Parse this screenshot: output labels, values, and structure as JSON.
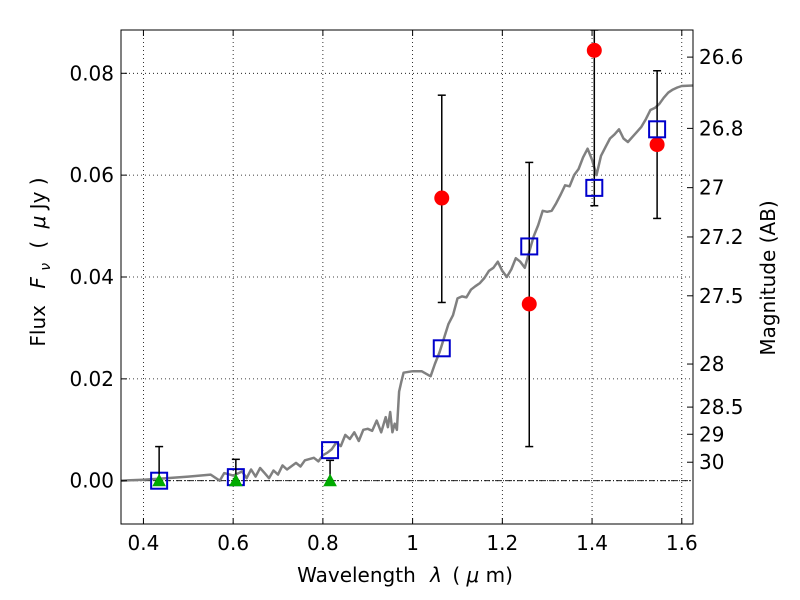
{
  "chart_data": {
    "type": "scatter",
    "xlabel_main": "Wavelength",
    "xlabel_symbol": "λ",
    "xlabel_unit_open": "(",
    "xlabel_unit_mu": "μ",
    "xlabel_unit_rest": "m)",
    "ylabel_main": "Flux",
    "ylabel_symbol": "F",
    "ylabel_symbol_sub": "ν",
    "ylabel_unit_open": "(",
    "ylabel_unit_mu": "μ",
    "ylabel_unit_rest": "Jy )",
    "y2label": "Magnitude (AB)",
    "xlim": [
      0.35,
      1.625
    ],
    "ylim": [
      -0.0085,
      0.0885
    ],
    "grid": true,
    "xticks": [
      0.4,
      0.6,
      0.8,
      1.0,
      1.2,
      1.4,
      1.6
    ],
    "xtick_labels": [
      "0.4",
      "0.6",
      "0.8",
      "1",
      "1.2",
      "1.4",
      "1.6"
    ],
    "yticks": [
      0.0,
      0.02,
      0.04,
      0.06,
      0.08
    ],
    "ytick_labels": [
      "0.00",
      "0.02",
      "0.04",
      "0.06",
      "0.08"
    ],
    "y2ticks": [
      {
        "label": "26.6",
        "mag": 26.6
      },
      {
        "label": "26.8",
        "mag": 26.8
      },
      {
        "label": "27",
        "mag": 27.0
      },
      {
        "label": "27.2",
        "mag": 27.2
      },
      {
        "label": "27.5",
        "mag": 27.5
      },
      {
        "label": "28",
        "mag": 28.0
      },
      {
        "label": "28.5",
        "mag": 28.5
      },
      {
        "label": "29",
        "mag": 29.0
      },
      {
        "label": "30",
        "mag": 30.0
      }
    ],
    "colors": {
      "template": "#808080",
      "observed": "#ff0000",
      "model": "#0000cc",
      "upper_limit": "#00aa00",
      "errorbar": "#000000"
    },
    "series": [
      {
        "kind": "line",
        "color": "#808080",
        "points": [
          [
            0.35,
            0.0
          ],
          [
            0.4,
            0.0002
          ],
          [
            0.45,
            0.0005
          ],
          [
            0.5,
            0.0008
          ],
          [
            0.55,
            0.0012
          ],
          [
            0.57,
            0.0
          ],
          [
            0.58,
            0.0015
          ],
          [
            0.6,
            0.001
          ],
          [
            0.62,
            0.0018
          ],
          [
            0.63,
            0.0005
          ],
          [
            0.64,
            0.0022
          ],
          [
            0.65,
            0.0008
          ],
          [
            0.66,
            0.0025
          ],
          [
            0.67,
            0.0015
          ],
          [
            0.68,
            0.0005
          ],
          [
            0.69,
            0.002
          ],
          [
            0.7,
            0.0012
          ],
          [
            0.71,
            0.003
          ],
          [
            0.72,
            0.0022
          ],
          [
            0.74,
            0.0035
          ],
          [
            0.75,
            0.0028
          ],
          [
            0.76,
            0.004
          ],
          [
            0.78,
            0.0045
          ],
          [
            0.79,
            0.0038
          ],
          [
            0.8,
            0.005
          ],
          [
            0.81,
            0.0055
          ],
          [
            0.82,
            0.0062
          ],
          [
            0.83,
            0.0075
          ],
          [
            0.84,
            0.0068
          ],
          [
            0.85,
            0.009
          ],
          [
            0.86,
            0.0082
          ],
          [
            0.87,
            0.0095
          ],
          [
            0.88,
            0.0078
          ],
          [
            0.89,
            0.01
          ],
          [
            0.9,
            0.0102
          ],
          [
            0.91,
            0.0098
          ],
          [
            0.92,
            0.0118
          ],
          [
            0.93,
            0.0095
          ],
          [
            0.94,
            0.0125
          ],
          [
            0.945,
            0.0105
          ],
          [
            0.95,
            0.0135
          ],
          [
            0.955,
            0.0095
          ],
          [
            0.96,
            0.0112
          ],
          [
            0.965,
            0.01
          ],
          [
            0.97,
            0.0175
          ],
          [
            0.975,
            0.0195
          ],
          [
            0.98,
            0.0212
          ],
          [
            1.0,
            0.0215
          ],
          [
            1.02,
            0.0215
          ],
          [
            1.04,
            0.0205
          ],
          [
            1.05,
            0.023
          ],
          [
            1.06,
            0.0252
          ],
          [
            1.07,
            0.028
          ],
          [
            1.08,
            0.0308
          ],
          [
            1.09,
            0.0325
          ],
          [
            1.1,
            0.0358
          ],
          [
            1.11,
            0.0362
          ],
          [
            1.12,
            0.036
          ],
          [
            1.13,
            0.0375
          ],
          [
            1.14,
            0.0382
          ],
          [
            1.15,
            0.0388
          ],
          [
            1.16,
            0.0398
          ],
          [
            1.17,
            0.0412
          ],
          [
            1.18,
            0.0418
          ],
          [
            1.19,
            0.043
          ],
          [
            1.2,
            0.0412
          ],
          [
            1.21,
            0.04
          ],
          [
            1.22,
            0.0415
          ],
          [
            1.23,
            0.0437
          ],
          [
            1.24,
            0.043
          ],
          [
            1.25,
            0.0418
          ],
          [
            1.26,
            0.045
          ],
          [
            1.27,
            0.048
          ],
          [
            1.28,
            0.0502
          ],
          [
            1.29,
            0.053
          ],
          [
            1.3,
            0.0528
          ],
          [
            1.31,
            0.053
          ],
          [
            1.32,
            0.0545
          ],
          [
            1.33,
            0.0562
          ],
          [
            1.34,
            0.058
          ],
          [
            1.35,
            0.0578
          ],
          [
            1.36,
            0.06
          ],
          [
            1.37,
            0.0612
          ],
          [
            1.38,
            0.0635
          ],
          [
            1.39,
            0.0652
          ],
          [
            1.4,
            0.063
          ],
          [
            1.41,
            0.06
          ],
          [
            1.42,
            0.0638
          ],
          [
            1.43,
            0.0655
          ],
          [
            1.44,
            0.0672
          ],
          [
            1.45,
            0.068
          ],
          [
            1.46,
            0.069
          ],
          [
            1.47,
            0.0672
          ],
          [
            1.48,
            0.0665
          ],
          [
            1.49,
            0.0675
          ],
          [
            1.5,
            0.0685
          ],
          [
            1.51,
            0.0695
          ],
          [
            1.52,
            0.071
          ],
          [
            1.53,
            0.0728
          ],
          [
            1.54,
            0.0732
          ],
          [
            1.55,
            0.074
          ],
          [
            1.56,
            0.0752
          ],
          [
            1.57,
            0.0762
          ],
          [
            1.58,
            0.0768
          ],
          [
            1.59,
            0.0772
          ],
          [
            1.6,
            0.0775
          ],
          [
            1.625,
            0.0776
          ]
        ]
      },
      {
        "kind": "points-errorbar",
        "marker": "circle",
        "color": "#ff0000",
        "points": [
          {
            "x": 1.065,
            "y": 0.0555,
            "ylo": 0.035,
            "yhi": 0.0757
          },
          {
            "x": 1.26,
            "y": 0.0347,
            "ylo": 0.0067,
            "yhi": 0.0625
          },
          {
            "x": 1.405,
            "y": 0.0845,
            "ylo": 0.054,
            "yhi": 0.0885
          },
          {
            "x": 1.545,
            "y": 0.066,
            "ylo": 0.0515,
            "yhi": 0.0805
          }
        ]
      },
      {
        "kind": "points",
        "marker": "square",
        "color": "#0000cc",
        "points": [
          {
            "x": 0.435,
            "y": 0.0
          },
          {
            "x": 0.606,
            "y": 0.0007
          },
          {
            "x": 0.816,
            "y": 0.006
          },
          {
            "x": 1.065,
            "y": 0.026
          },
          {
            "x": 1.26,
            "y": 0.046
          },
          {
            "x": 1.405,
            "y": 0.0575
          },
          {
            "x": 1.545,
            "y": 0.069
          }
        ]
      },
      {
        "kind": "points-errorbar",
        "marker": "triangle",
        "color": "#00aa00",
        "points": [
          {
            "x": 0.435,
            "y": 0.0,
            "ylo": 0.0,
            "yhi": 0.0067
          },
          {
            "x": 0.606,
            "y": 0.0,
            "ylo": 0.0,
            "yhi": 0.0042
          },
          {
            "x": 0.816,
            "y": 0.0,
            "ylo": 0.0,
            "yhi": 0.004
          }
        ]
      }
    ]
  }
}
